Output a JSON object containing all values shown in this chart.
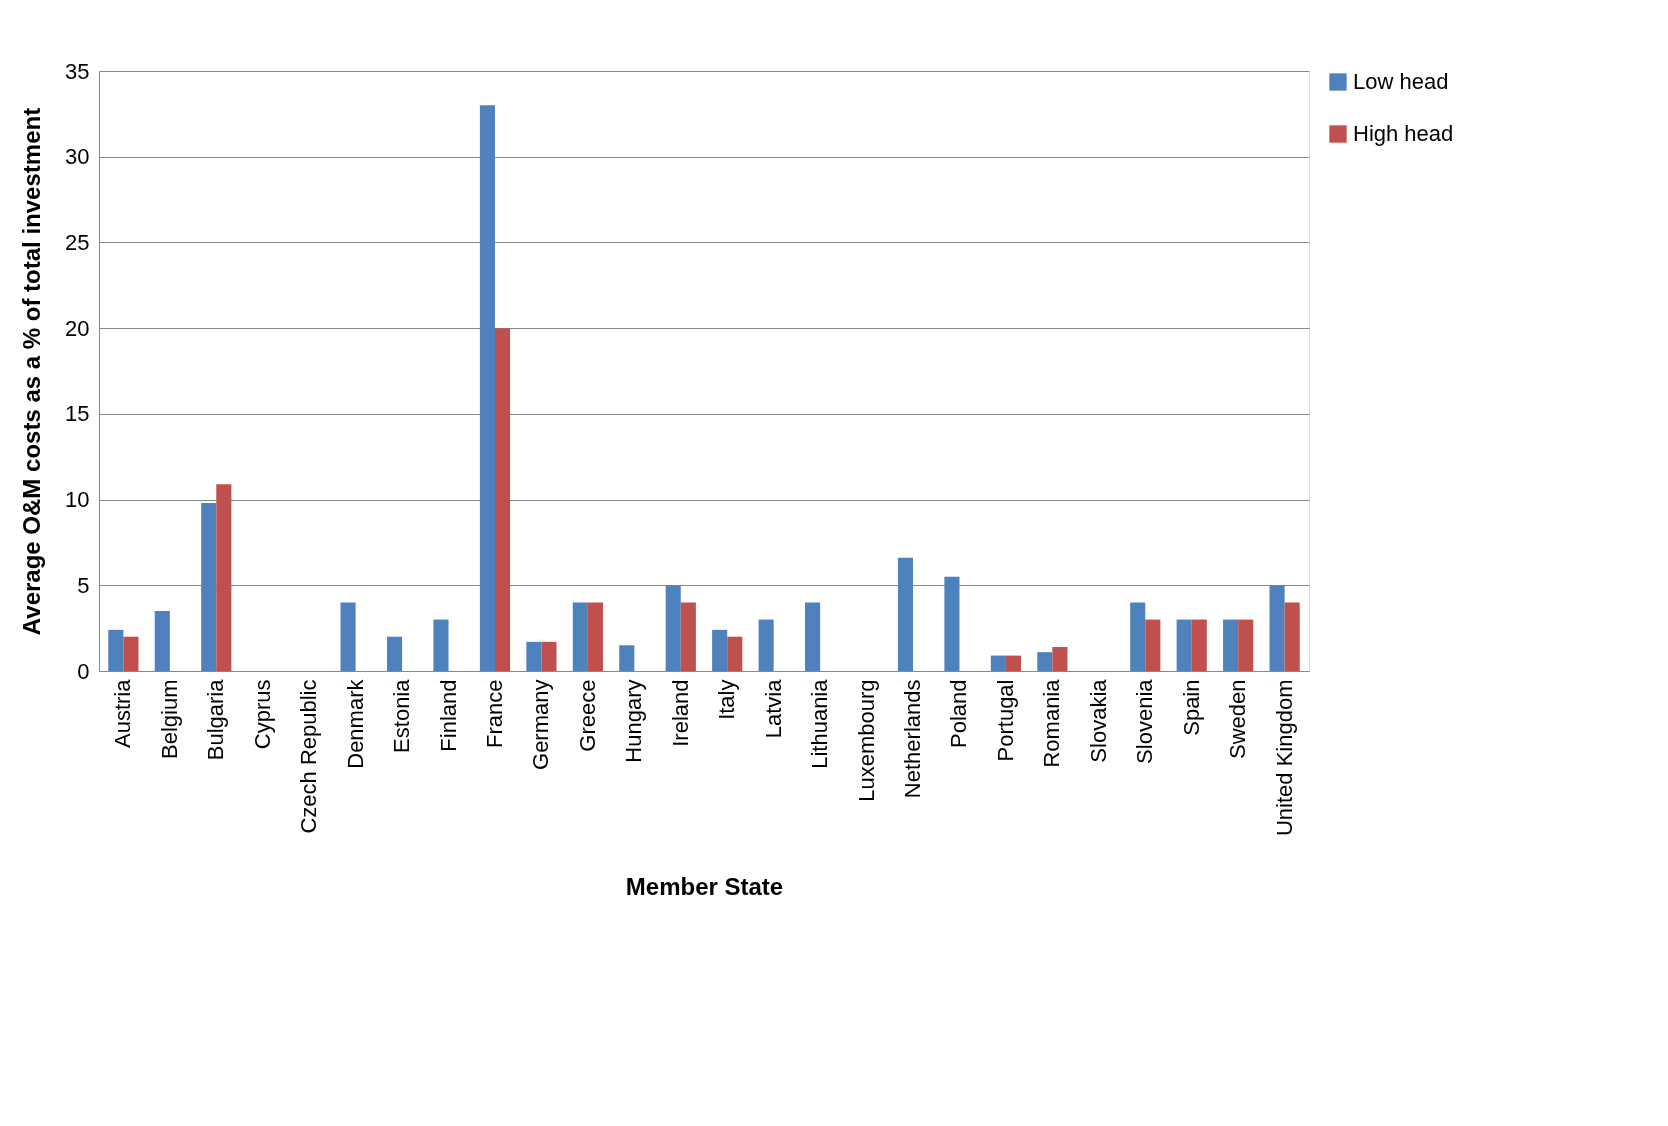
{
  "chart_data": {
    "type": "bar",
    "xlabel": "Member State",
    "ylabel": "Average  O&M costs as a % of total investment",
    "categories": [
      "Austria",
      "Belgium",
      "Bulgaria",
      "Cyprus",
      "Czech Republic",
      "Denmark",
      "Estonia",
      "Finland",
      "France",
      "Germany",
      "Greece",
      "Hungary",
      "Ireland",
      "Italy",
      "Latvia",
      "Lithuania",
      "Luxembourg",
      "Netherlands",
      "Poland",
      "Portugal",
      "Romania",
      "Slovakia",
      "Slovenia",
      "Spain",
      "Sweden",
      "United Kingdom"
    ],
    "series": [
      {
        "name": "Low head",
        "color": "#4f81bd",
        "values": [
          2.4,
          3.5,
          9.8,
          null,
          null,
          4,
          2,
          3,
          33,
          1.7,
          4,
          1.5,
          5,
          2.4,
          3,
          4,
          null,
          6.6,
          5.5,
          0.9,
          1.1,
          null,
          4,
          3,
          3,
          5
        ]
      },
      {
        "name": "High head",
        "color": "#c0504d",
        "values": [
          2,
          null,
          10.9,
          null,
          null,
          null,
          null,
          null,
          20,
          1.7,
          4,
          null,
          4,
          2,
          null,
          null,
          null,
          null,
          null,
          0.9,
          1.4,
          null,
          3,
          3,
          3,
          4
        ]
      }
    ],
    "ylim": [
      0,
      35
    ],
    "yticks": [
      0,
      5,
      10,
      15,
      20,
      25,
      30,
      35
    ],
    "grid": "y",
    "legend": "right"
  }
}
